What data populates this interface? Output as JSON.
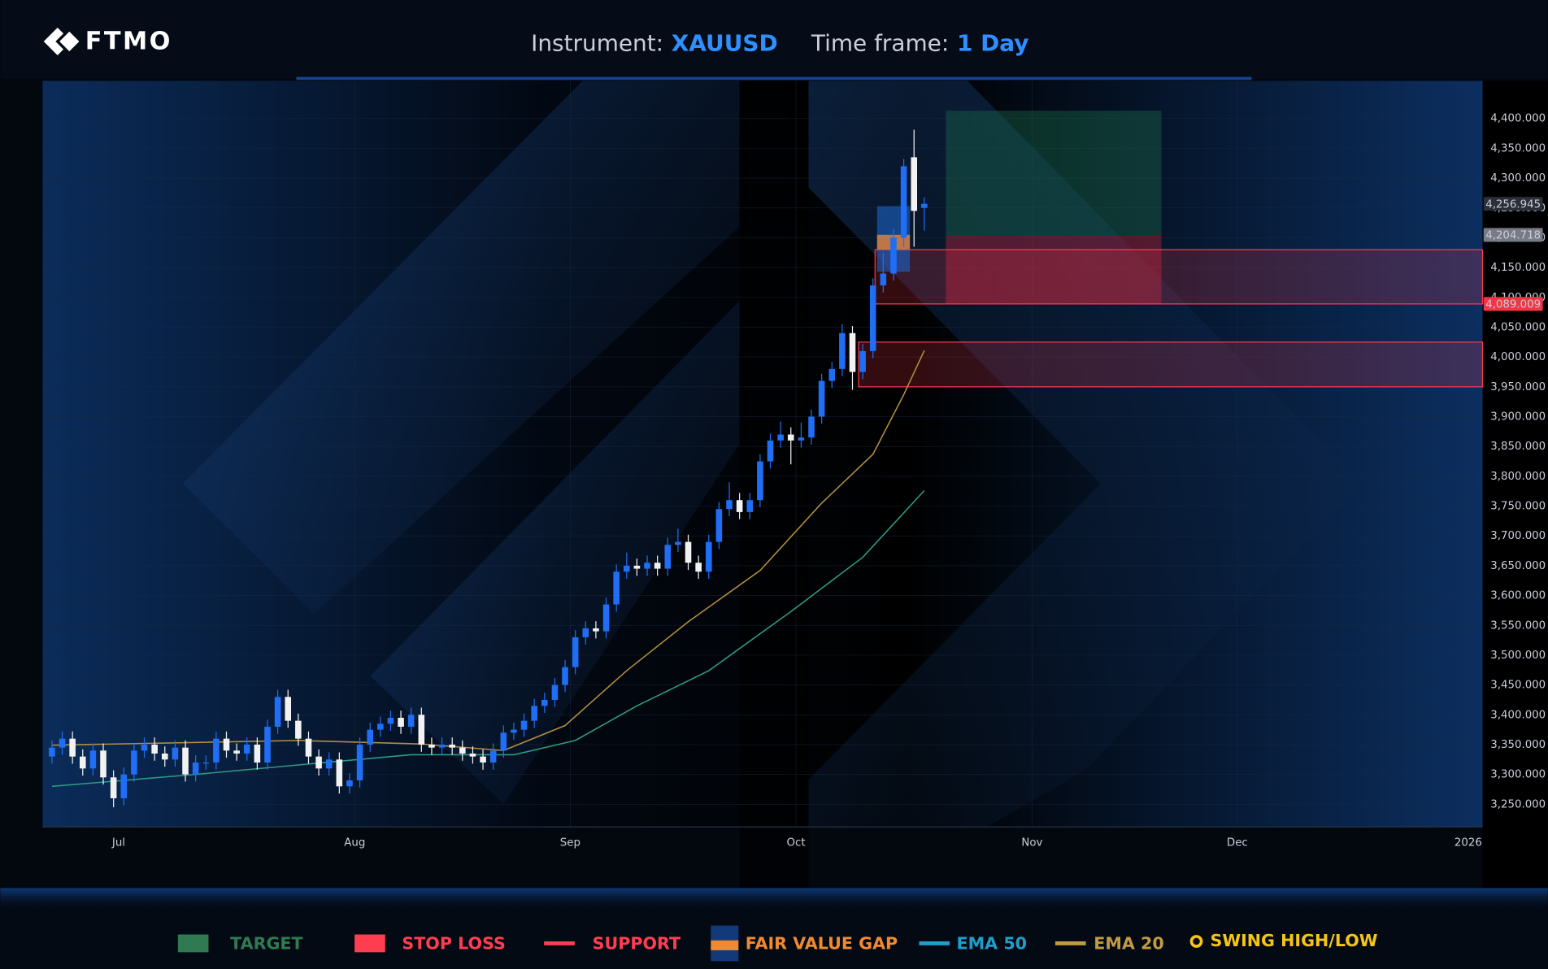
{
  "header": {
    "logo": "FTMO",
    "instrument_label": "Instrument:",
    "instrument": "XAUUSD",
    "timeframe_label": "Time frame:",
    "timeframe": "1 Day"
  },
  "chart_data": {
    "type": "candlestick",
    "xlim": [
      -0.9,
      139.4
    ],
    "xticks": [
      {
        "value": 6.5,
        "label": "Jul"
      },
      {
        "value": 29.5,
        "label": "Aug"
      },
      {
        "value": 50.5,
        "label": "Sep"
      },
      {
        "value": 72.5,
        "label": "Oct"
      },
      {
        "value": 95.5,
        "label": "Nov"
      },
      {
        "value": 115.5,
        "label": "Dec"
      },
      {
        "value": 138,
        "label": "2026"
      }
    ],
    "ylim": [
      3212,
      4463
    ],
    "yticks": [
      {
        "value": 4400,
        "label": "4,400.000"
      },
      {
        "value": 4350,
        "label": "4,350.000"
      },
      {
        "value": 4300,
        "label": "4,300.000"
      },
      {
        "value": 4250,
        "label": "4,250.000"
      },
      {
        "value": 4200,
        "label": "4,200.000"
      },
      {
        "value": 4150,
        "label": "4,150.000"
      },
      {
        "value": 4100,
        "label": "4,100.000"
      },
      {
        "value": 4050,
        "label": "4,050.000"
      },
      {
        "value": 4000,
        "label": "4,000.000"
      },
      {
        "value": 3950,
        "label": "3,950.000"
      },
      {
        "value": 3900,
        "label": "3,900.000"
      },
      {
        "value": 3850,
        "label": "3,850.000"
      },
      {
        "value": 3800,
        "label": "3,800.000"
      },
      {
        "value": 3750,
        "label": "3,750.000"
      },
      {
        "value": 3700,
        "label": "3,700.000"
      },
      {
        "value": 3650,
        "label": "3,650.000"
      },
      {
        "value": 3600,
        "label": "3,600.000"
      },
      {
        "value": 3550,
        "label": "3,550.000"
      },
      {
        "value": 3500,
        "label": "3,500.000"
      },
      {
        "value": 3450,
        "label": "3,450.000"
      },
      {
        "value": 3400,
        "label": "3,400.000"
      },
      {
        "value": 3350,
        "label": "3,350.000"
      },
      {
        "value": 3300,
        "label": "3,300.000"
      },
      {
        "value": 3250,
        "label": "3,250.000"
      }
    ],
    "grid": true,
    "up_color": "#1f6ef5",
    "down_color": "#f2f2f2",
    "candles": {
      "open": [
        3330,
        3345,
        3360,
        3330,
        3310,
        3340,
        3295,
        3260,
        3300,
        3340,
        3350,
        3335,
        3325,
        3345,
        3300,
        3320,
        3320,
        3360,
        3340,
        3335,
        3350,
        3320,
        3380,
        3430,
        3390,
        3360,
        3330,
        3310,
        3325,
        3280,
        3290,
        3350,
        3375,
        3385,
        3395,
        3380,
        3400,
        3350,
        3345,
        3350,
        3345,
        3335,
        3330,
        3320,
        3340,
        3370,
        3375,
        3390,
        3415,
        3425,
        3450,
        3480,
        3530,
        3545,
        3540,
        3585,
        3640,
        3650,
        3645,
        3655,
        3645,
        3685,
        3690,
        3655,
        3640,
        3690,
        3745,
        3760,
        3740,
        3760,
        3825,
        3860,
        3870,
        3860,
        3865,
        3900,
        3960,
        3980,
        4040,
        3975,
        4010,
        4120,
        4140,
        4200,
        4335,
        4250
      ],
      "high": [
        3357,
        3372,
        3372,
        3342,
        3352,
        3352,
        3307,
        3312,
        3352,
        3362,
        3362,
        3347,
        3357,
        3357,
        3332,
        3332,
        3372,
        3372,
        3352,
        3362,
        3362,
        3392,
        3442,
        3442,
        3402,
        3372,
        3342,
        3337,
        3337,
        3302,
        3362,
        3387,
        3397,
        3407,
        3407,
        3412,
        3412,
        3362,
        3362,
        3362,
        3357,
        3347,
        3342,
        3352,
        3382,
        3387,
        3402,
        3427,
        3437,
        3462,
        3492,
        3542,
        3557,
        3557,
        3597,
        3652,
        3672,
        3662,
        3667,
        3667,
        3697,
        3712,
        3702,
        3667,
        3702,
        3757,
        3790,
        3772,
        3772,
        3837,
        3872,
        3892,
        3882,
        3890,
        3912,
        3972,
        3992,
        4055,
        4052,
        4022,
        4132,
        4175,
        4215,
        4332,
        4381,
        4268
      ],
      "low": [
        3318,
        3333,
        3318,
        3298,
        3298,
        3283,
        3245,
        3248,
        3288,
        3328,
        3323,
        3313,
        3313,
        3288,
        3288,
        3308,
        3308,
        3328,
        3323,
        3323,
        3308,
        3308,
        3368,
        3378,
        3348,
        3318,
        3298,
        3298,
        3268,
        3268,
        3278,
        3338,
        3363,
        3373,
        3368,
        3368,
        3338,
        3333,
        3333,
        3333,
        3323,
        3318,
        3308,
        3308,
        3328,
        3358,
        3363,
        3378,
        3403,
        3413,
        3438,
        3468,
        3518,
        3528,
        3528,
        3573,
        3628,
        3633,
        3633,
        3633,
        3633,
        3673,
        3643,
        3628,
        3628,
        3678,
        3733,
        3728,
        3728,
        3748,
        3813,
        3848,
        3820,
        3848,
        3853,
        3888,
        3948,
        3968,
        3945,
        3963,
        3998,
        4108,
        4128,
        4185,
        4185,
        4212
      ],
      "close": [
        3345,
        3360,
        3330,
        3310,
        3340,
        3295,
        3260,
        3300,
        3340,
        3350,
        3335,
        3325,
        3345,
        3300,
        3320,
        3320,
        3360,
        3340,
        3335,
        3350,
        3320,
        3380,
        3430,
        3390,
        3360,
        3330,
        3310,
        3325,
        3280,
        3290,
        3350,
        3375,
        3385,
        3395,
        3380,
        3400,
        3350,
        3345,
        3350,
        3345,
        3335,
        3330,
        3320,
        3340,
        3370,
        3375,
        3390,
        3415,
        3425,
        3450,
        3480,
        3530,
        3545,
        3540,
        3585,
        3640,
        3650,
        3645,
        3655,
        3645,
        3685,
        3690,
        3655,
        3640,
        3690,
        3745,
        3760,
        3740,
        3760,
        3825,
        3860,
        3870,
        3860,
        3865,
        3900,
        3960,
        3980,
        4040,
        3975,
        4010,
        4120,
        4140,
        4200,
        4320,
        4245,
        4256.945
      ]
    },
    "series": [
      {
        "color": "#2e9a84",
        "x": [
          0,
          14,
          24,
          35,
          45,
          51,
          57,
          64,
          72,
          79,
          85
        ],
        "values": [
          3280,
          3300,
          3316,
          3333,
          3333,
          3357,
          3415,
          3474,
          3573,
          3664,
          3776
        ]
      },
      {
        "color": "#b38d3e",
        "x": [
          0,
          24,
          36,
          44,
          50,
          56,
          62,
          69,
          75,
          80,
          83,
          85
        ],
        "values": [
          3349,
          3357,
          3351,
          3340,
          3382,
          3474,
          3556,
          3642,
          3755,
          3837,
          3937,
          4011
        ]
      }
    ],
    "zones": {
      "target": {
        "x": [
          87.1,
          108.1
        ],
        "y": [
          4204.718,
          4413
        ],
        "color": "#1f7a52"
      },
      "stop_loss": {
        "x": [
          87.1,
          108.1
        ],
        "y": [
          4089.009,
          4204.718
        ],
        "color": "#c8233c"
      },
      "support": [
        {
          "x_start": 80.2,
          "y": [
            4089.009,
            4180
          ],
          "color": "#ff3a50"
        },
        {
          "x_start": 78.6,
          "y": [
            3950,
            4025
          ],
          "color": "#ff3a50"
        }
      ],
      "fair_value_gap": {
        "x": [
          80.4,
          83.6
        ],
        "y": [
          4143,
          4253
        ],
        "gap": [
          4180,
          4205
        ],
        "color": "#1e64c8",
        "gap_color": "#e8823a"
      }
    },
    "price_labels": [
      {
        "value": 4256.945,
        "label": "4,256.945",
        "color": "#2a2f3a"
      },
      {
        "value": 4204.718,
        "label": "4,204.718",
        "color": "#787b86"
      },
      {
        "value": 4089.009,
        "label": "4,089.009",
        "color": "#f23645"
      }
    ]
  },
  "legend": [
    {
      "label": "TARGET",
      "kind": "box",
      "color": "#2f7a50"
    },
    {
      "label": "STOP LOSS",
      "kind": "box",
      "color": "#ff3d50"
    },
    {
      "label": "SUPPORT",
      "kind": "line",
      "color": "#ff3d50"
    },
    {
      "label": "FAIR VALUE GAP",
      "kind": "fvg",
      "color": "#f08a30"
    },
    {
      "label": "EMA 50",
      "kind": "line",
      "color": "#1e9ec8"
    },
    {
      "label": "EMA 20",
      "kind": "line",
      "color": "#c29a45"
    },
    {
      "label": "SWING HIGH/LOW",
      "kind": "dot",
      "color": "#f5c518"
    }
  ]
}
